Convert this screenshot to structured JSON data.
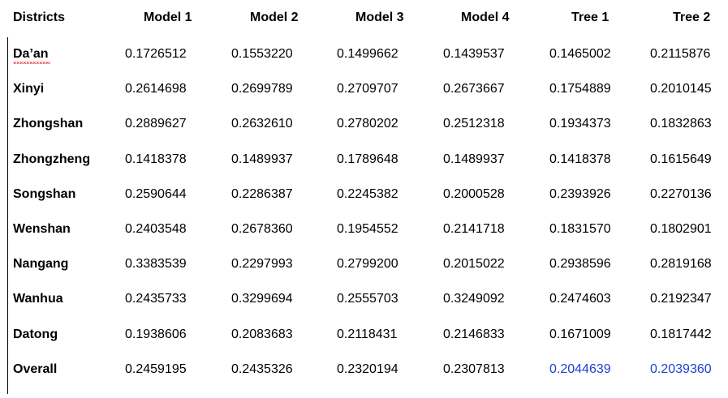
{
  "table": {
    "header": [
      "Districts",
      "Model 1",
      "Model 2",
      "Model 3",
      "Model 4",
      "Tree 1",
      "Tree 2"
    ],
    "rows": [
      [
        "Da’an",
        "0.1726512",
        "0.1553220",
        "0.1499662",
        "0.1439537",
        "0.1465002",
        "0.2115876"
      ],
      [
        "Xinyi",
        "0.2614698",
        "0.2699789",
        "0.2709707",
        "0.2673667",
        "0.1754889",
        "0.2010145"
      ],
      [
        "Zhongshan",
        "0.2889627",
        "0.2632610",
        "0.2780202",
        "0.2512318",
        "0.1934373",
        "0.1832863"
      ],
      [
        "Zhongzheng",
        "0.1418378",
        "0.1489937",
        "0.1789648",
        "0.1489937",
        "0.1418378",
        "0.1615649"
      ],
      [
        "Songshan",
        "0.2590644",
        "0.2286387",
        "0.2245382",
        "0.2000528",
        "0.2393926",
        "0.2270136"
      ],
      [
        "Wenshan",
        "0.2403548",
        "0.2678360",
        "0.1954552",
        "0.2141718",
        "0.1831570",
        "0.1802901"
      ],
      [
        "Nangang",
        "0.3383539",
        "0.2297993",
        "0.2799200",
        "0.2015022",
        "0.2938596",
        "0.2819168"
      ],
      [
        "Wanhua",
        "0.2435733",
        "0.3299694",
        "0.2555703",
        "0.3249092",
        "0.2474603",
        "0.2192347"
      ],
      [
        "Datong",
        "0.1938606",
        "0.2083683",
        "0.2118431",
        "0.2146833",
        "0.1671009",
        "0.1817442"
      ],
      [
        "Overall",
        "0.2459195",
        "0.2435326",
        "0.2320194",
        "0.2307813",
        "0.2044639",
        "0.2039360"
      ]
    ]
  }
}
